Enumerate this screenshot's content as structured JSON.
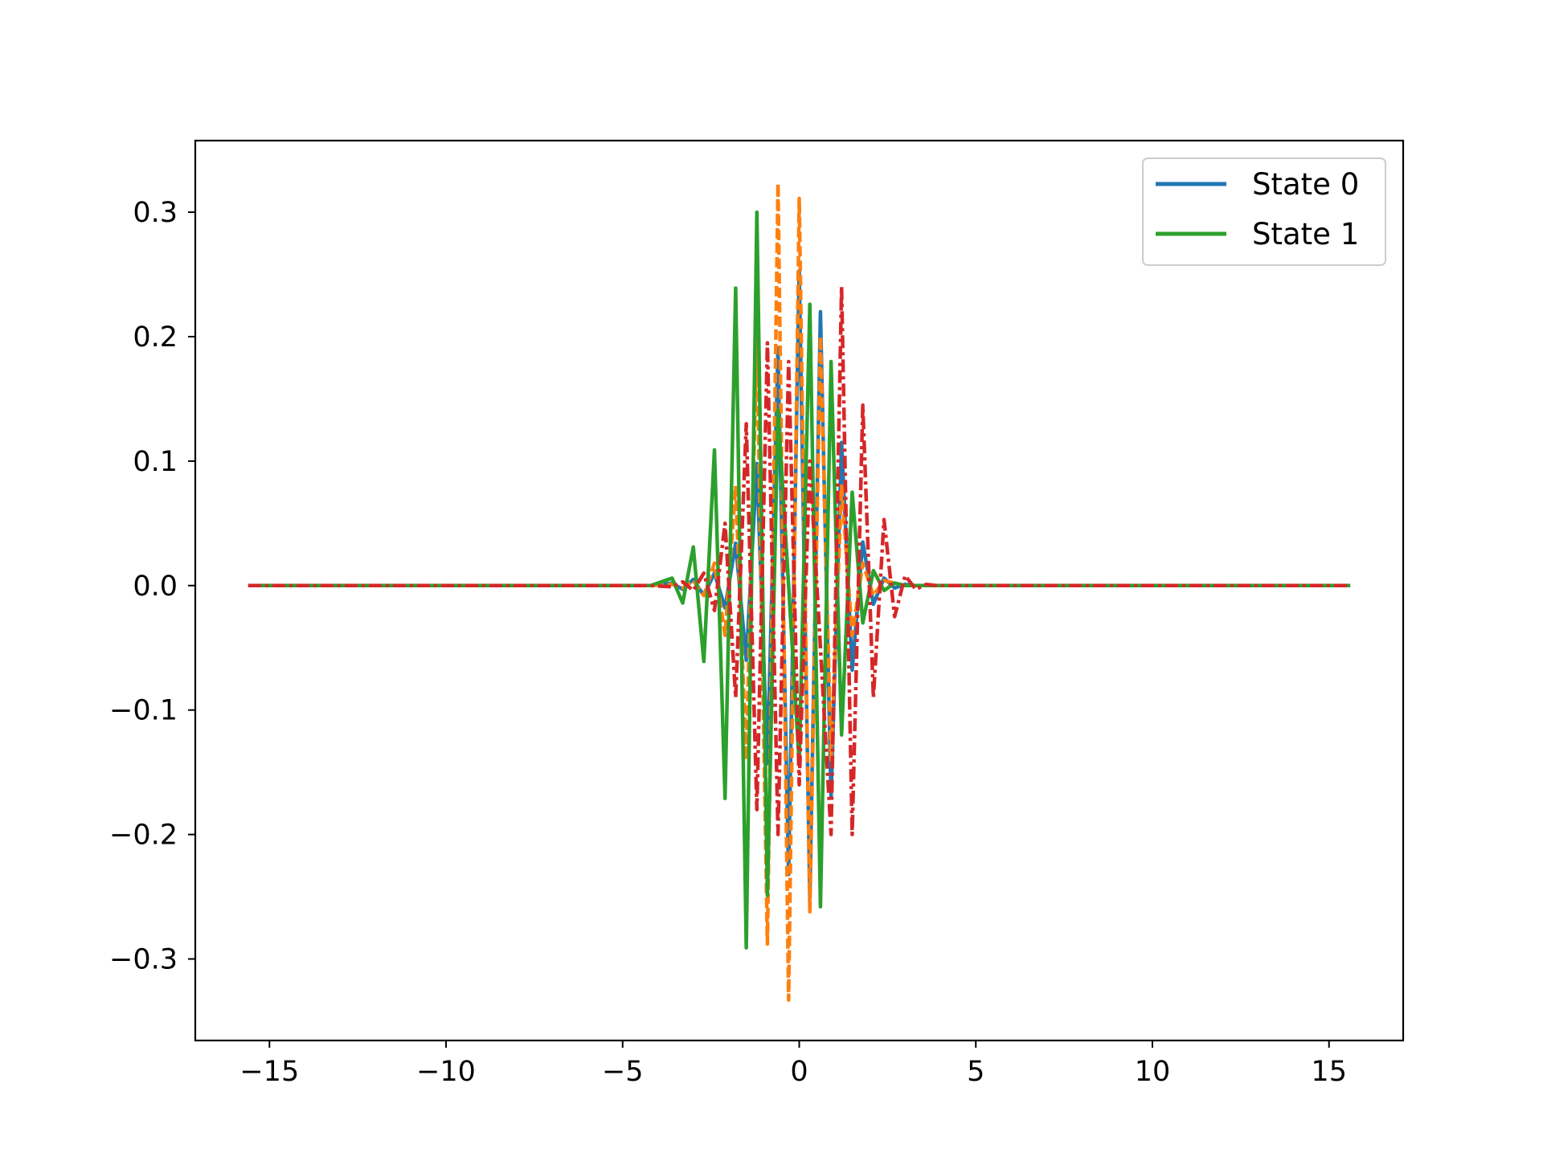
{
  "chart_data": {
    "type": "line",
    "title": "",
    "xlabel": "",
    "ylabel": "",
    "xlim": [
      -17.1,
      17.1
    ],
    "ylim": [
      -0.3655,
      0.3575
    ],
    "grid": false,
    "legend_position": "top-right",
    "x_ticks": [
      -15,
      -10,
      -5,
      0,
      5,
      10,
      15
    ],
    "x_tick_labels": [
      "−15",
      "−10",
      "−5",
      "0",
      "5",
      "10",
      "15"
    ],
    "y_ticks": [
      -0.3,
      -0.2,
      -0.1,
      0.0,
      0.1,
      0.2,
      0.3
    ],
    "y_tick_labels": [
      "−0.3",
      "−0.2",
      "−0.1",
      "0.0",
      "0.1",
      "0.2",
      "0.3"
    ],
    "legend": [
      {
        "label": "State 0",
        "color": "#1f77b4"
      },
      {
        "label": "State 1",
        "color": "#2ca02c"
      }
    ],
    "series": [
      {
        "name": "State 0",
        "color": "#1f77b4",
        "style": "solid",
        "x": [
          -15.6,
          -4.2,
          -3.6,
          -3.3,
          -3.0,
          -2.7,
          -2.4,
          -2.1,
          -1.8,
          -1.5,
          -1.2,
          -0.9,
          -0.6,
          -0.3,
          0.0,
          0.3,
          0.6,
          0.9,
          1.2,
          1.5,
          1.8,
          2.1,
          2.4,
          2.7,
          3.0,
          3.3,
          3.6,
          3.9,
          4.2,
          15.6
        ],
        "y": [
          0.0,
          0.0,
          0.002,
          -0.003,
          0.005,
          -0.008,
          0.01,
          -0.018,
          0.034,
          -0.06,
          0.098,
          -0.143,
          0.191,
          -0.232,
          0.253,
          -0.251,
          0.22,
          -0.17,
          0.115,
          -0.068,
          0.035,
          -0.015,
          0.006,
          -0.002,
          0.001,
          0.0,
          0.0,
          0.0,
          0.0,
          0.0
        ]
      },
      {
        "name": "",
        "color": "#ff7f0e",
        "style": "dashed",
        "x": [
          -15.6,
          -4.2,
          -3.6,
          -3.3,
          -3.0,
          -2.7,
          -2.4,
          -2.1,
          -1.8,
          -1.5,
          -1.2,
          -0.9,
          -0.6,
          -0.3,
          0.0,
          0.3,
          0.6,
          0.9,
          1.2,
          1.5,
          1.8,
          2.1,
          2.4,
          2.7,
          3.0,
          3.3,
          3.6,
          3.9,
          4.2,
          15.6
        ],
        "y": [
          0.0,
          0.0,
          0.001,
          -0.002,
          0.004,
          -0.008,
          0.018,
          -0.04,
          0.08,
          -0.14,
          0.2,
          -0.288,
          0.323,
          -0.333,
          0.311,
          -0.262,
          0.2,
          -0.14,
          0.08,
          -0.04,
          0.018,
          -0.008,
          0.004,
          0.002,
          0.0,
          0.0,
          0.0,
          0.0,
          0.0,
          0.0
        ]
      },
      {
        "name": "State 1",
        "color": "#2ca02c",
        "style": "solid",
        "x": [
          -15.6,
          -4.2,
          -3.6,
          -3.3,
          -3.0,
          -2.7,
          -2.4,
          -2.1,
          -1.8,
          -1.5,
          -1.2,
          -0.9,
          -0.6,
          -0.3,
          0.0,
          0.3,
          0.6,
          0.9,
          1.2,
          1.5,
          1.8,
          2.1,
          2.4,
          2.7,
          3.0,
          3.3,
          3.6,
          3.9,
          4.2,
          15.6
        ],
        "y": [
          0.0,
          0.0,
          0.006,
          -0.014,
          0.031,
          -0.061,
          0.109,
          -0.171,
          0.239,
          -0.291,
          0.3,
          -0.249,
          0.141,
          0.0,
          -0.143,
          0.226,
          -0.258,
          0.18,
          -0.12,
          0.075,
          -0.03,
          0.012,
          -0.004,
          0.002,
          0.0,
          0.0,
          0.0,
          0.0,
          0.0,
          0.0
        ]
      },
      {
        "name": "",
        "color": "#d62728",
        "style": "dashdot",
        "x": [
          -15.6,
          -4.2,
          -3.6,
          -3.3,
          -3.0,
          -2.7,
          -2.4,
          -2.1,
          -1.8,
          -1.5,
          -1.2,
          -0.9,
          -0.6,
          -0.3,
          0.0,
          0.3,
          0.6,
          0.9,
          1.2,
          1.5,
          1.8,
          2.1,
          2.4,
          2.7,
          3.0,
          3.3,
          3.6,
          3.9,
          4.2,
          15.6
        ],
        "y": [
          0.0,
          0.0,
          -0.001,
          0.003,
          -0.004,
          0.01,
          -0.02,
          0.05,
          -0.09,
          0.13,
          -0.18,
          0.195,
          -0.2,
          0.18,
          -0.16,
          0.1,
          -0.05,
          -0.2,
          0.24,
          -0.2,
          0.145,
          -0.09,
          0.053,
          -0.025,
          0.008,
          -0.003,
          0.001,
          0.0,
          0.0,
          0.0
        ]
      }
    ]
  }
}
